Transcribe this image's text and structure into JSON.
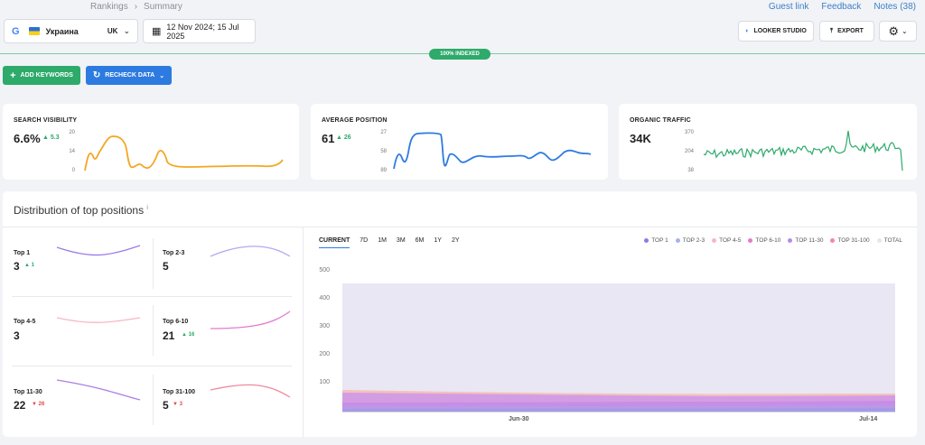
{
  "breadcrumbs": [
    "Rankings",
    "Summary"
  ],
  "top_links": [
    "Guest link",
    "Feedback",
    "Notes (38)"
  ],
  "engine": {
    "logo": "G",
    "country": "Украина",
    "code": "UK"
  },
  "date_range": "12 Nov 2024; 15 Jul 2025",
  "toolbar": {
    "looker": "LOOKER STUDIO",
    "export": "EXPORT"
  },
  "indexed_badge": "100% INDEXED",
  "actions": {
    "add": "ADD KEYWORDS",
    "recheck": "RECHECK DATA"
  },
  "metrics": [
    {
      "title": "SEARCH VISIBILITY",
      "value": "6.6%",
      "delta": "▲ 5.3",
      "axis": [
        "20",
        "14",
        "0"
      ],
      "color": "#f5a623"
    },
    {
      "title": "AVERAGE POSITION",
      "value": "61",
      "delta": "▲ 26",
      "axis": [
        "27",
        "58",
        "89"
      ],
      "color": "#2d7be0"
    },
    {
      "title": "ORGANIC TRAFFIC",
      "value": "34K",
      "delta": "",
      "axis": [
        "370",
        "204",
        "38"
      ],
      "color": "#2eaa6b"
    }
  ],
  "distribution": {
    "title": "Distribution of top positions",
    "info": "i",
    "groups": [
      {
        "label": "Top 1",
        "value": "3",
        "delta": "▲ 1",
        "dir": "up",
        "color": "#9b7be6"
      },
      {
        "label": "Top 2-3",
        "value": "5",
        "delta": "",
        "dir": "",
        "color": "#b9a6ee"
      },
      {
        "label": "Top 4-5",
        "value": "3",
        "delta": "",
        "dir": "",
        "color": "#f6b8c2"
      },
      {
        "label": "Top 6-10",
        "value": "21",
        "delta": "▲ 16",
        "dir": "up",
        "color": "#e37ad0"
      },
      {
        "label": "Top 11-30",
        "value": "22",
        "delta": "▼ 26",
        "dir": "down",
        "color": "#a97fe6"
      },
      {
        "label": "Top 31-100",
        "value": "5",
        "delta": "▼ 3",
        "dir": "down",
        "color": "#ef8aa0"
      }
    ],
    "tabs": [
      "CURRENT",
      "7D",
      "1M",
      "3M",
      "6M",
      "1Y",
      "2Y"
    ],
    "legend": [
      {
        "name": "TOP 1",
        "color": "#8d7be8"
      },
      {
        "name": "TOP 2-3",
        "color": "#a7b3e8"
      },
      {
        "name": "TOP 4-5",
        "color": "#f6b8c2"
      },
      {
        "name": "TOP 6-10",
        "color": "#e37ad0"
      },
      {
        "name": "TOP 11-30",
        "color": "#b58be8"
      },
      {
        "name": "TOP 31-100",
        "color": "#ef8aa0"
      },
      {
        "name": "TOTAL",
        "color": "#e6e6ea"
      }
    ],
    "y_ticks": [
      "500",
      "400",
      "300",
      "200",
      "100"
    ],
    "x_ticks": [
      "Jun-30",
      "Jul-14"
    ]
  }
}
